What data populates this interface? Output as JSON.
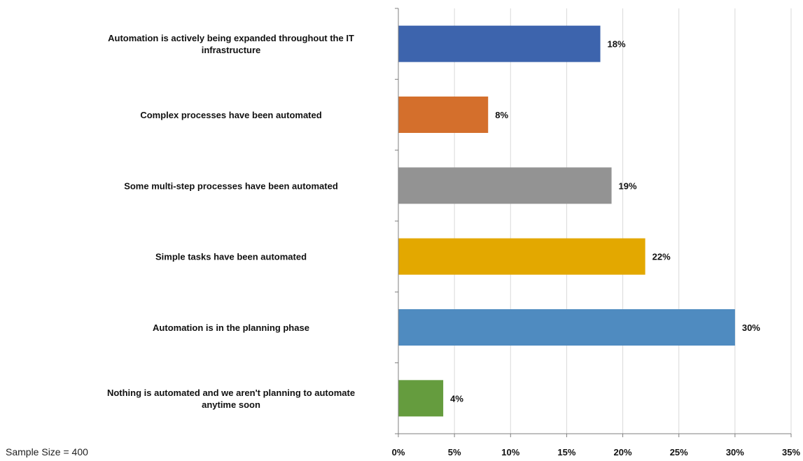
{
  "chart_data": {
    "type": "bar",
    "orientation": "horizontal",
    "categories": [
      [
        "Automation is actively being expanded throughout the IT",
        "infrastructure"
      ],
      [
        "Complex processes have been automated"
      ],
      [
        "Some multi-step processes have been automated"
      ],
      [
        "Simple tasks have been automated"
      ],
      [
        "Automation is in the planning phase"
      ],
      [
        "Nothing is automated and we aren't planning to automate",
        "anytime soon"
      ]
    ],
    "values": [
      18,
      8,
      19,
      22,
      30,
      4
    ],
    "data_labels": [
      "18%",
      "8%",
      "19%",
      "22%",
      "30%",
      "4%"
    ],
    "colors": [
      "#3d64ad",
      "#d46f2c",
      "#939393",
      "#e3a800",
      "#4f8bc0",
      "#659c3e"
    ],
    "xlim": [
      0,
      35
    ],
    "x_ticks": [
      0,
      5,
      10,
      15,
      20,
      25,
      30,
      35
    ],
    "x_tick_labels": [
      "0%",
      "5%",
      "10%",
      "15%",
      "20%",
      "25%",
      "30%",
      "35%"
    ],
    "grid": true
  },
  "footnote": "Sample Size = 400"
}
